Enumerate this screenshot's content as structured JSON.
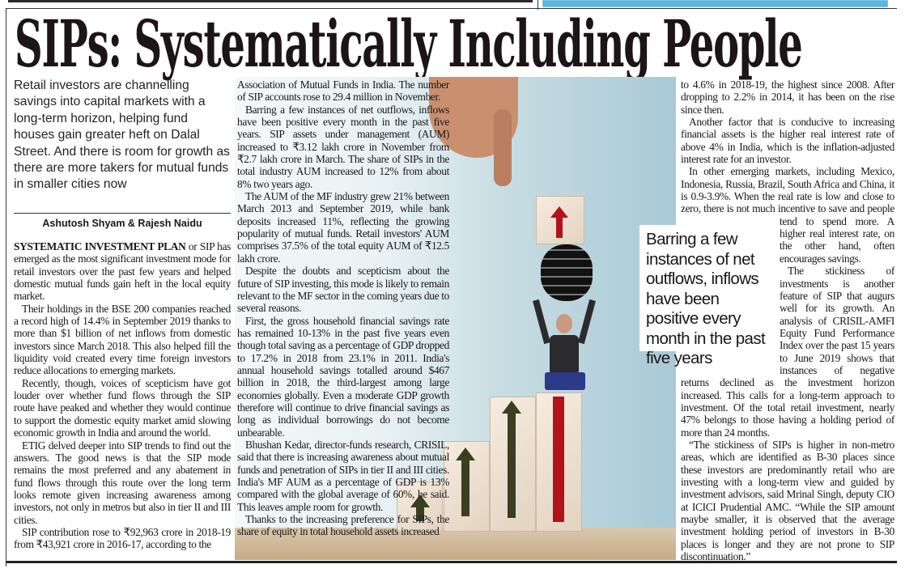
{
  "headline": "SIPs: Systematically Including People",
  "deck": "Retail investors are channelling savings into capital markets with a long-term horizon, helping fund houses gain greater heft on Dalal Street. And there is room for growth as there are more takers for mutual funds in smaller cities now",
  "byline": "Ashutosh Shyam & Rajesh Naidu",
  "lead_caps": "SYSTEMATIC INVESTMENT PLAN",
  "columns": {
    "col1": [
      " or SIP has emerged as the most significant investment mode for retail investors over the past few years and helped domestic mutual funds gain heft in the local equity market.",
      "Their holdings in the BSE 200 companies reached a record high of 14.4% in September 2019 thanks to more than $1 billion of net inflows from domestic investors since March 2018. This also helped fill the liquidity void created every time foreign investors reduce allocations to emerging markets.",
      "Recently, though, voices of scepticism have got louder over whether fund flows through the SIP route have peaked and whether they would continue to support the domestic equity market amid slowing economic growth in India and around the world.",
      "ETIG delved deeper into SIP trends to find out the answers. The good news is that the SIP mode remains the most preferred and any abatement in fund flows through this route over the long term looks remote given increasing awareness among investors, not only in metros but also in tier II and III cities.",
      "SIP contribution rose to ₹92,963 crore in 2018-19 from ₹43,921 crore in 2016-17, according to the"
    ],
    "col2": [
      "Association of Mutual Funds in India. The number of SIP accounts rose to 29.4 million in November.",
      "Barring a few instances of net outflows, inflows have been positive every month in the past five years. SIP assets under management (AUM) increased to ₹3.12 lakh crore in November from ₹2.7 lakh crore in March. The share of SIPs in the total industry AUM increased to 12% from about 8% two years ago.",
      "The AUM of the MF industry grew 21% between March 2013 and September 2019, while bank deposits increased 11%, reflecting the growing popularity of mutual funds. Retail investors' AUM comprises 37.5% of the total equity AUM of ₹12.5 lakh crore.",
      "Despite the doubts and scepticism about the future of SIP investing, this mode is likely to remain relevant to the MF sector in the coming years due to several reasons.",
      "First, the gross household financial savings rate has remained 10-13% in the past five years even though total saving as a percentage of GDP dropped to 17.2% in 2018 from 23.1% in 2011. India's annual household savings totalled around $467 billion in 2018, the third-largest among large economies globally. Even a moderate GDP growth therefore will continue to drive financial savings as long as individual borrowings do not become unbearable.",
      "Bhushan Kedar, director-funds research, CRISIL, said that there is increasing awareness about mutual funds and penetration of SIPs in tier II and III cities. India's MF AUM as a percentage of GDP is 13% compared with the global average of 60%, he said. This leaves ample room for growth.",
      "Thanks to the increasing preference for SIPs, the share of equity in total household assets increased"
    ],
    "col3": [
      "to 4.6% in 2018-19, the highest since 2008. After dropping to 2.2% in 2014, it has been on the rise since then.",
      "Another factor that is conducive to increasing financial assets is the higher real interest rate of above 4% in India, which is the inflation-adjusted interest rate for an investor.",
      "In other emerging markets, including Mexico, Indonesia, Russia, Brazil, South Africa and China, it is 0.9-3.9%. When the real rate is low and close to zero, there is not much incentive to save and people tend to spend more. A higher real interest rate, on the other hand, often encourages savings.",
      "The stickiness of investments is another feature of SIP that augurs well for its growth. An analysis of CRISIL-AMFI Equity Fund Performance Index over the past 15 years to June 2019 shows that instances of negative returns declined as the investment horizon increased. This calls for a long-term approach to investment. Of the total retail investment, nearly 47% belongs to those having a holding period of more than 24 months.",
      "“The stickiness of SIPs is higher in non-metro areas, which are identified as B-30 places since these investors are predominantly retail who are investing with a long-term view and guided by investment advisors, said Mrinal Singh, deputy CIO at ICICI Prudential AMC. “While the SIP amount maybe smaller, it is observed that the average investment holding period of investors in B-30 places is longer and they are not prone to SIP discontinuation.”"
    ]
  },
  "pull_quote": "Barring a few instances of net outflows, inflows have been positive every month in the past five years",
  "colors": {
    "arrow_red": "#b3121b",
    "arrow_green": "#3a3f1f",
    "sky": "#a9c9d6"
  }
}
